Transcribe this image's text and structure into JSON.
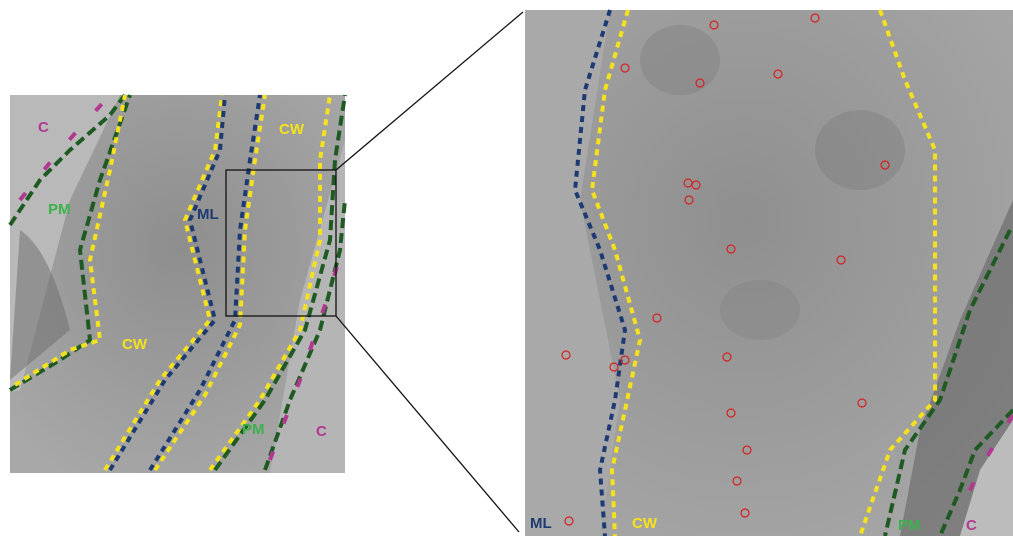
{
  "left_panel": {
    "labels": [
      "C",
      "CW",
      "PM",
      "ML",
      "CW",
      "PM",
      "C"
    ]
  },
  "right_panel": {
    "labels": [
      "ML",
      "CW",
      "PM",
      "C"
    ]
  }
}
